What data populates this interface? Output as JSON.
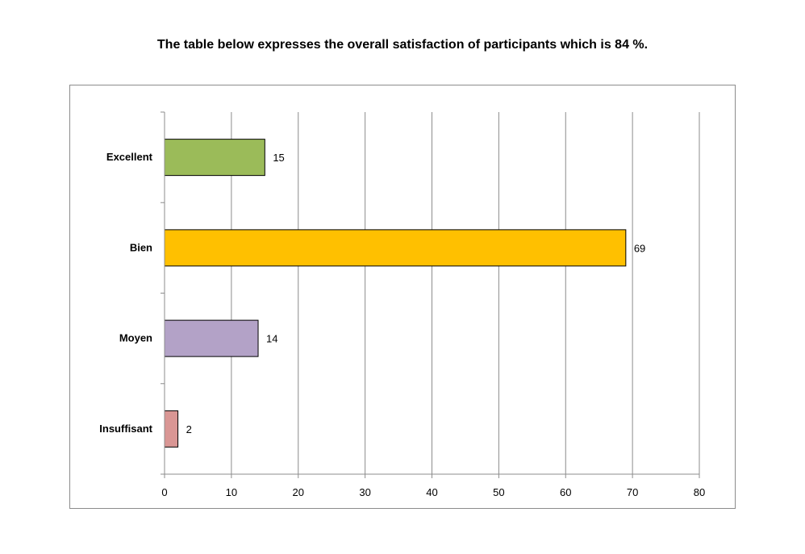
{
  "chart_data": {
    "type": "bar",
    "orientation": "horizontal",
    "title": "The table below expresses the overall satisfaction of participants which is 84 %.",
    "categories": [
      "Excellent",
      "Bien",
      "Moyen",
      "Insuffisant"
    ],
    "values": [
      15,
      69,
      14,
      2
    ],
    "colors": [
      "#9BBB59",
      "#FFC000",
      "#B3A2C7",
      "#D99694"
    ],
    "xlim": [
      0,
      80
    ],
    "xticks": [
      0,
      10,
      20,
      30,
      40,
      50,
      60,
      70,
      80
    ],
    "grid": true,
    "legend": "none",
    "xlabel": "",
    "ylabel": ""
  }
}
